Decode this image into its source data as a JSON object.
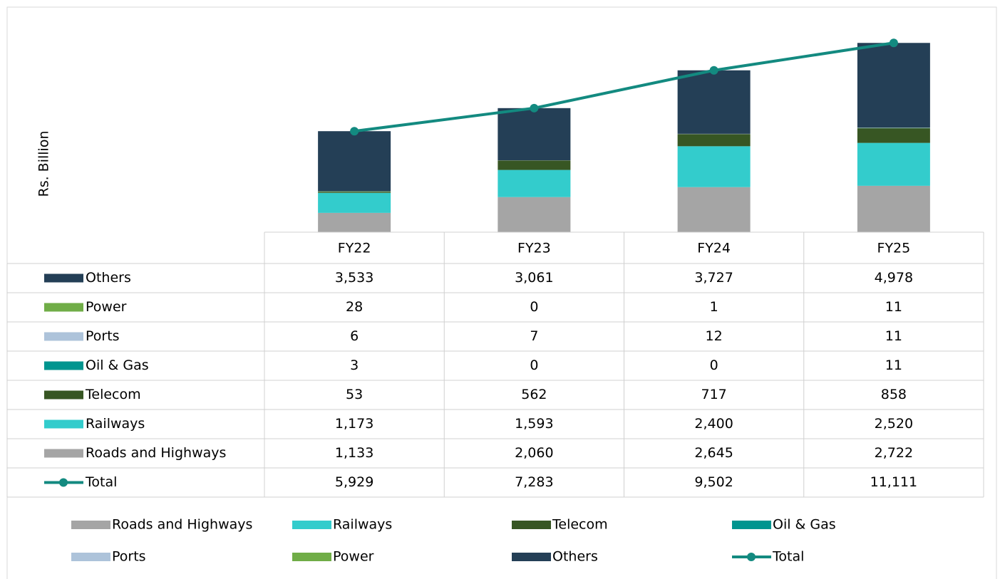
{
  "chart_data": {
    "type": "bar",
    "stacked": true,
    "ylabel": "Rs. Billion",
    "categories": [
      "FY22",
      "FY23",
      "FY24",
      "FY25"
    ],
    "ylim": [
      0,
      12000
    ],
    "series": [
      {
        "name": "Roads and Highways",
        "color": "#a5a5a5",
        "values": [
          1133,
          2060,
          2645,
          2722
        ],
        "value_labels": [
          "1,133",
          "2,060",
          "2,645",
          "2,722"
        ]
      },
      {
        "name": "Railways",
        "color": "#33cccc",
        "values": [
          1173,
          1593,
          2400,
          2520
        ],
        "value_labels": [
          "1,173",
          "1,593",
          "2,400",
          "2,520"
        ]
      },
      {
        "name": "Telecom",
        "color": "#375623",
        "values": [
          53,
          562,
          717,
          858
        ]
      },
      {
        "name": "Oil & Gas",
        "color": "#00958f",
        "values": [
          3,
          0,
          0,
          11
        ]
      },
      {
        "name": "Ports",
        "color": "#adc3da",
        "values": [
          6,
          7,
          12,
          11
        ]
      },
      {
        "name": "Power",
        "color": "#70ad47",
        "values": [
          28,
          0,
          1,
          11
        ]
      },
      {
        "name": "Others",
        "color": "#243f56",
        "values": [
          3533,
          3061,
          3727,
          4978
        ],
        "value_labels": [
          "3,533",
          "3,061",
          "3,727",
          "4,978"
        ]
      },
      {
        "name": "Total",
        "type": "line",
        "color": "#138a80",
        "values": [
          5929,
          7283,
          9502,
          11111
        ],
        "value_labels": [
          "5,929",
          "7,283",
          "9,502",
          "11,111"
        ]
      }
    ]
  }
}
